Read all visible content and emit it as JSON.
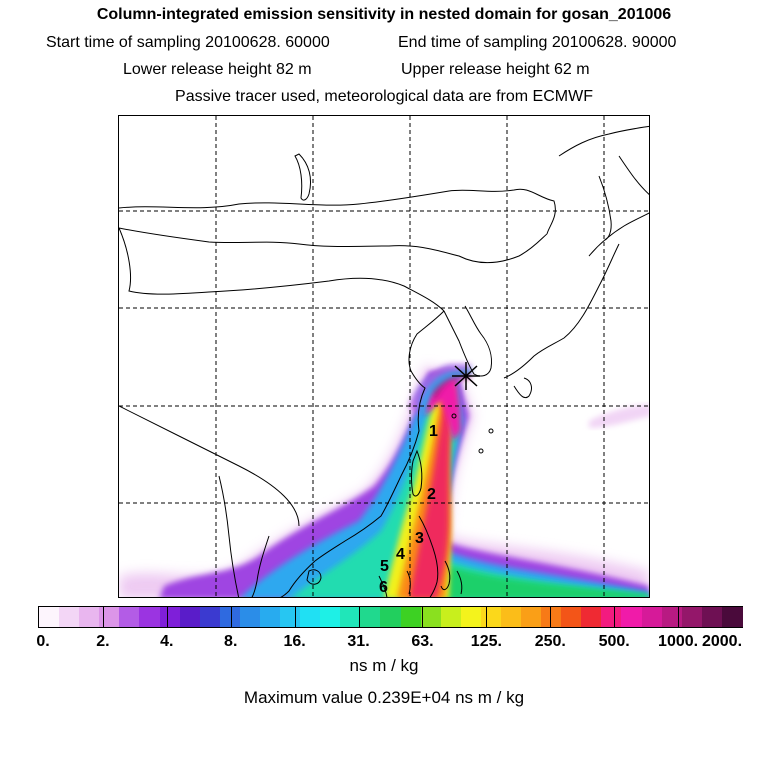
{
  "header": {
    "title": "Column-integrated emission sensitivity in nested domain for gosan_201006",
    "start_label": "Start time of sampling 20100628. 60000",
    "end_label": "End time of sampling 20100628. 90000",
    "lower_label": "Lower release height   82 m",
    "upper_label": "Upper release height   62 m",
    "tracer_label": "Passive tracer used, meteorological data are from ECMWF"
  },
  "map": {
    "markers": [
      "1",
      "2",
      "3",
      "4",
      "5",
      "6"
    ],
    "release_site": "star-marker"
  },
  "colorbar": {
    "tick_labels": [
      "0.",
      "2.",
      "4.",
      "8.",
      "16.",
      "31.",
      "63.",
      "125.",
      "250.",
      "500.",
      "1000.",
      "2000."
    ],
    "colors": [
      "#fdf5fd",
      "#f3d6f6",
      "#e9b6ef",
      "#dc95e8",
      "#b35ce6",
      "#9b34e1",
      "#7f1fd9",
      "#5a1cc9",
      "#3b3ad0",
      "#2f6ae0",
      "#2b8de8",
      "#28abef",
      "#27c6f2",
      "#20e0f3",
      "#1ef0e6",
      "#20e6b9",
      "#20d98e",
      "#22cf5e",
      "#3dd123",
      "#8ae01f",
      "#c8ef1d",
      "#f4f31c",
      "#fbd81b",
      "#fbbd19",
      "#fa9f17",
      "#f77a17",
      "#f35518",
      "#ef2a33",
      "#f31b7f",
      "#f01ba9",
      "#d61a99",
      "#b81a82",
      "#94176a",
      "#6e1053",
      "#4a0a3b"
    ]
  },
  "units": "ns m / kg",
  "maximum_value": "Maximum value  0.239E+04 ns m / kg"
}
